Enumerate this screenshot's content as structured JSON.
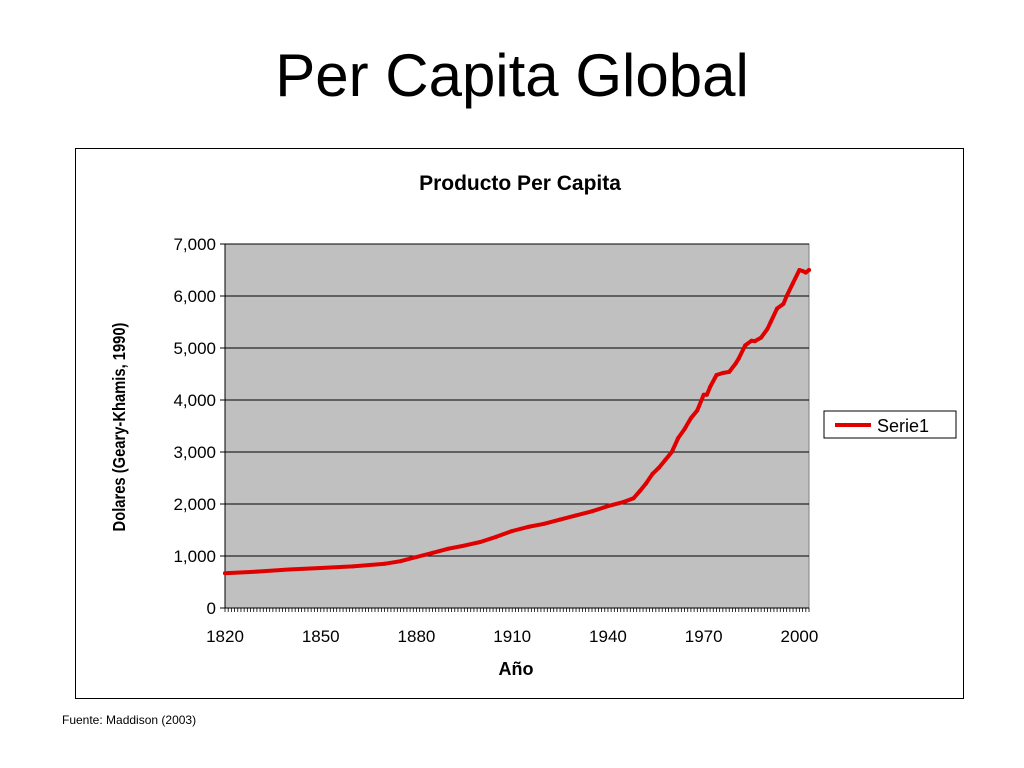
{
  "slide": {
    "title": "Per Capita Global",
    "source": "Fuente: Maddison (2003)"
  },
  "colors": {
    "plot_background": "#c0c0c0",
    "series_line": "#e00000",
    "gridline": "#000000"
  },
  "chart_data": {
    "type": "line",
    "title": "Producto Per Capita",
    "xlabel": "Año",
    "ylabel": "Dolares (Geary-Khamis, 1990)",
    "xlim": [
      1820,
      2003
    ],
    "ylim": [
      0,
      7000
    ],
    "x_ticks": [
      1820,
      1850,
      1880,
      1910,
      1940,
      1970,
      2000
    ],
    "x_tick_labels": [
      "1820",
      "1850",
      "1880",
      "1910",
      "1940",
      "1970",
      "2000"
    ],
    "y_ticks": [
      0,
      1000,
      2000,
      3000,
      4000,
      5000,
      6000,
      7000
    ],
    "y_tick_labels": [
      "0",
      "1,000",
      "2,000",
      "3,000",
      "4,000",
      "5,000",
      "6,000",
      "7,000"
    ],
    "grid": "horizontal",
    "legend_position": "right",
    "series": [
      {
        "name": "Serie1",
        "x": [
          1820,
          1830,
          1840,
          1850,
          1860,
          1870,
          1875,
          1880,
          1885,
          1890,
          1895,
          1900,
          1905,
          1910,
          1915,
          1920,
          1925,
          1930,
          1935,
          1940,
          1945,
          1948,
          1950,
          1952,
          1954,
          1956,
          1958,
          1960,
          1962,
          1964,
          1966,
          1968,
          1970,
          1971,
          1972,
          1974,
          1976,
          1978,
          1980,
          1981,
          1983,
          1985,
          1986,
          1988,
          1990,
          1991,
          1993,
          1995,
          1996,
          1998,
          2000,
          2001,
          2002,
          2003
        ],
        "values": [
          670,
          700,
          740,
          770,
          800,
          850,
          900,
          980,
          1060,
          1140,
          1200,
          1270,
          1370,
          1480,
          1560,
          1620,
          1700,
          1780,
          1860,
          1960,
          2040,
          2110,
          2250,
          2400,
          2580,
          2700,
          2850,
          3000,
          3270,
          3440,
          3650,
          3800,
          4100,
          4100,
          4250,
          4480,
          4520,
          4540,
          4700,
          4800,
          5050,
          5140,
          5130,
          5200,
          5370,
          5500,
          5760,
          5850,
          6000,
          6250,
          6500,
          6480,
          6450,
          6500
        ]
      }
    ]
  }
}
